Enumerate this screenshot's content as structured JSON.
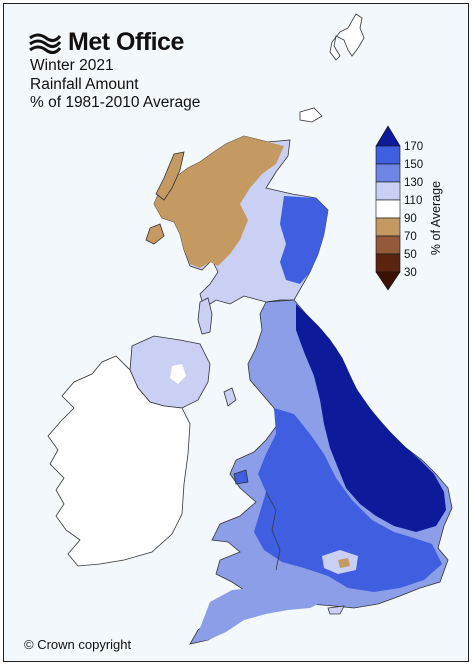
{
  "logo": {
    "text": "Met Office"
  },
  "title": {
    "line1": "Winter 2021",
    "line2": "Rainfall Amount",
    "line3": "% of 1981-2010 Average"
  },
  "legend": {
    "title": "% of Average",
    "ticks": [
      "170",
      "150",
      "130",
      "110",
      "90",
      "70",
      "50",
      "30"
    ],
    "colors": [
      "#0d1b9a",
      "#3f5fe0",
      "#8c9ee8",
      "#c9d0f3",
      "#ffffff",
      "#c59a62",
      "#94593a",
      "#5a2410",
      "#3a1204"
    ]
  },
  "copyright": "© Crown copyright",
  "map_colors": {
    "very_wet": "#0d1b9a",
    "wet": "#3f5fe0",
    "moderate": "#8c9ee8",
    "slight": "#c9d0f3",
    "normal": "#ffffff",
    "dry": "#c59a62",
    "sea": "#f3f8fc"
  }
}
